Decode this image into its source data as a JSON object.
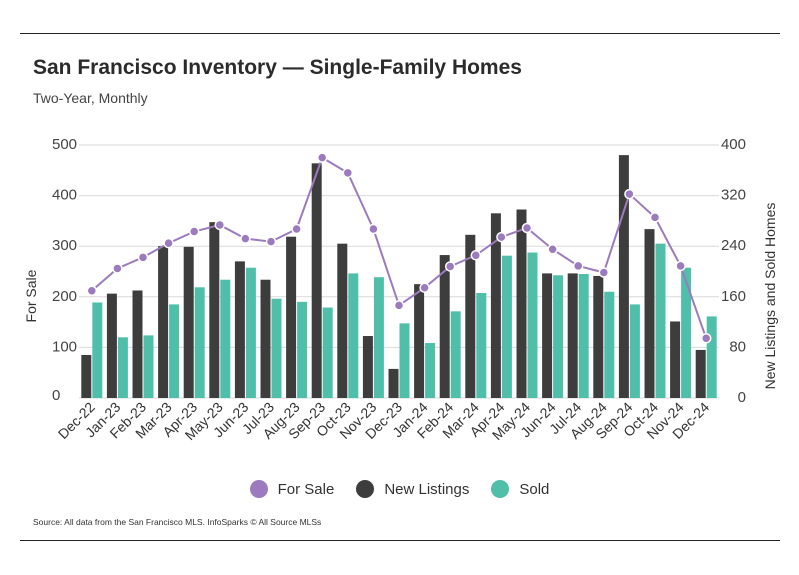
{
  "header": {
    "title": "San Francisco Inventory — Single-Family Homes",
    "subtitle": "Two-Year, Monthly"
  },
  "footer": {
    "source": "Source:  All data from the San Francisco MLS. InfoSparks © All Source MLSs"
  },
  "colors": {
    "for_sale": "#9b7bbd",
    "new_listings": "#3d3d3d",
    "sold": "#4fbfaa",
    "grid": "#d9d9d9"
  },
  "chart_data": {
    "type": "bar",
    "title": "San Francisco Inventory — Single-Family Homes",
    "subtitle": "Two-Year, Monthly",
    "categories": [
      "Dec-22",
      "Jan-23",
      "Feb-23",
      "Mar-23",
      "Apr-23",
      "May-23",
      "Jun-23",
      "Jul-23",
      "Aug-23",
      "Sep-23",
      "Oct-23",
      "Nov-23",
      "Dec-23",
      "Jan-24",
      "Feb-24",
      "Mar-24",
      "Apr-24",
      "May-24",
      "Jun-24",
      "Jul-24",
      "Aug-24",
      "Sep-24",
      "Oct-24",
      "Nov-24",
      "Dec-24"
    ],
    "ylabel_left": "For Sale",
    "ylabel_right": "New Listings and Sold Homes",
    "ylim_left": [
      0,
      500
    ],
    "yticks_left": [
      0,
      100,
      200,
      300,
      400,
      500
    ],
    "ylim_right": [
      0,
      400
    ],
    "yticks_right": [
      0,
      80,
      160,
      240,
      320,
      400
    ],
    "grid": true,
    "legend_position": "bottom",
    "series": [
      {
        "name": "For Sale",
        "type": "line",
        "axis": "left",
        "values": [
          212,
          256,
          278,
          306,
          329,
          342,
          315,
          309,
          334,
          475,
          445,
          334,
          183,
          218,
          260,
          282,
          318,
          336,
          294,
          261,
          248,
          403,
          357,
          261,
          118
        ]
      },
      {
        "name": "New Listings",
        "type": "bar",
        "axis": "right",
        "values": [
          68,
          165,
          170,
          240,
          239,
          278,
          216,
          187,
          255,
          371,
          244,
          98,
          46,
          180,
          226,
          258,
          292,
          298,
          197,
          197,
          193,
          384,
          267,
          121,
          76
        ]
      },
      {
        "name": "Sold",
        "type": "bar",
        "axis": "right",
        "values": [
          151,
          96,
          99,
          148,
          175,
          187,
          206,
          157,
          152,
          143,
          197,
          191,
          118,
          87,
          137,
          166,
          225,
          230,
          194,
          196,
          168,
          148,
          244,
          206,
          129
        ]
      }
    ]
  },
  "legend": {
    "for_sale": "For Sale",
    "new_listings": "New Listings",
    "sold": "Sold"
  }
}
